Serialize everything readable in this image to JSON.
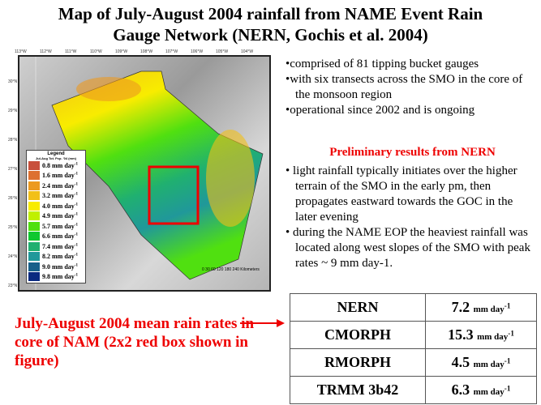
{
  "title": {
    "line1": "Map of July-August 2004 rainfall from NAME Event Rain",
    "line2": "Gauge Network (NERN, Gochis et al. 2004)"
  },
  "map": {
    "lon_labels": [
      "113°W",
      "112°W",
      "111°W",
      "110°W",
      "109°W",
      "108°W",
      "107°W",
      "106°W",
      "105°W",
      "104°W"
    ],
    "lat_labels": [
      "30°N",
      "29°N",
      "28°N",
      "27°N",
      "26°N",
      "25°N",
      "24°N",
      "23°N"
    ],
    "scale": "0 30 60 120 180 240 Kilometers",
    "legend": {
      "title": "Legend",
      "subtitle": "Jul-Aug Tot. Pcp. '04 (mm)",
      "unit": "mm day-1",
      "items": [
        {
          "v": "0.8",
          "c": "#c8503c"
        },
        {
          "v": "1.6",
          "c": "#dd7030"
        },
        {
          "v": "2.4",
          "c": "#ec9a20"
        },
        {
          "v": "3.2",
          "c": "#f2c018"
        },
        {
          "v": "4.0",
          "c": "#f8ec00"
        },
        {
          "v": "4.9",
          "c": "#c0f000"
        },
        {
          "v": "5.7",
          "c": "#50e010"
        },
        {
          "v": "6.6",
          "c": "#10c830"
        },
        {
          "v": "7.4",
          "c": "#20b070"
        },
        {
          "v": "8.2",
          "c": "#20989a"
        },
        {
          "v": "9.0",
          "c": "#18608a"
        },
        {
          "v": "9.8",
          "c": "#0a2a80"
        }
      ]
    }
  },
  "bullets1": [
    "comprised of 81 tipping bucket gauges",
    "with six transects across the SMO in the core of the monsoon region",
    "operational since 2002 and is ongoing"
  ],
  "prelim": "Preliminary results from NERN",
  "bullets2": [
    "light rainfall typically initiates over the higher terrain of the SMO in the early pm, then propagates eastward towards the GOC in the later evening",
    "during the NAME EOP the heaviest rainfall was located along west slopes of the SMO with peak rates ~ 9 mm day-1."
  ],
  "note": "July-August 2004 mean rain rates  in core of NAM (2x2 red box shown in figure)",
  "table": {
    "unit": "mm day-1",
    "rows": [
      {
        "name": "NERN",
        "value": "7.2"
      },
      {
        "name": "CMORPH",
        "value": "15.3"
      },
      {
        "name": "RMORPH",
        "value": "4.5"
      },
      {
        "name": "TRMM 3b42",
        "value": "6.3"
      }
    ]
  }
}
